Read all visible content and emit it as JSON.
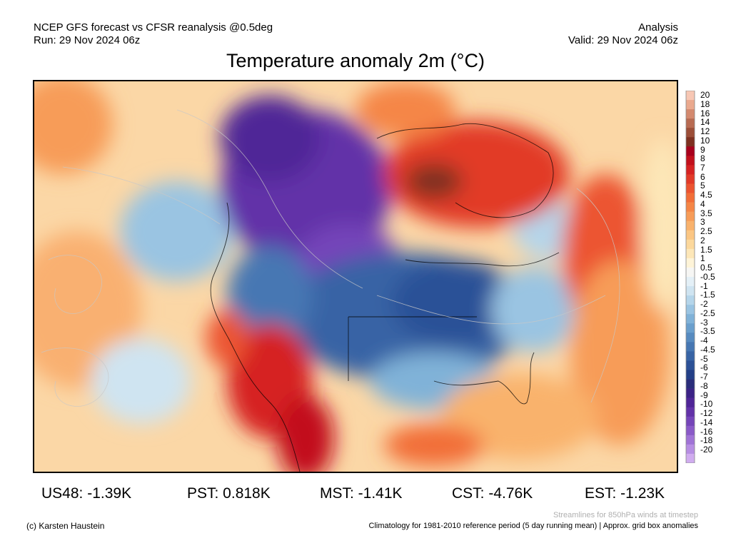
{
  "header": {
    "left_line1": "NCEP GFS forecast vs CFSR reanalysis @0.5deg",
    "left_line2": "Run: 29 Nov 2024 06z",
    "right_line1": "Analysis",
    "right_line2": "Valid: 29 Nov 2024 06z"
  },
  "title": "Temperature anomaly 2m (°C)",
  "colorbar": {
    "labels": [
      "20",
      "18",
      "16",
      "14",
      "12",
      "10",
      "9",
      "8",
      "7",
      "6",
      "5",
      "4.5",
      "4",
      "3.5",
      "3",
      "2.5",
      "2",
      "1.5",
      "1",
      "0.5",
      "-0.5",
      "-1",
      "-1.5",
      "-2",
      "-2.5",
      "-3",
      "-3.5",
      "-4",
      "-4.5",
      "-5",
      "-6",
      "-7",
      "-8",
      "-9",
      "-10",
      "-12",
      "-14",
      "-16",
      "-18",
      "-20"
    ],
    "colors": [
      "#f7c7b4",
      "#eaa98e",
      "#d48a6f",
      "#b86b52",
      "#9c4e38",
      "#7e3020",
      "#a8001c",
      "#c2101c",
      "#d62222",
      "#e23a28",
      "#ec5430",
      "#f26e38",
      "#f58646",
      "#f79c58",
      "#f9b26c",
      "#fbc683",
      "#fcd89c",
      "#fde7b8",
      "#fef4d8",
      "#f6f6f4",
      "#e4f0f7",
      "#cfe4f1",
      "#b5d5ea",
      "#9ac4e2",
      "#80b2d8",
      "#6a9fcd",
      "#578bc0",
      "#4677b3",
      "#3864a5",
      "#2c5197",
      "#233f87",
      "#2a2d7a",
      "#3b2286",
      "#4f2597",
      "#6232a8",
      "#7545b9",
      "#8a5ac8",
      "#a073d6",
      "#b78ee3",
      "#d0acef"
    ]
  },
  "stats": [
    {
      "label": "US48: -1.39K"
    },
    {
      "label": "PST: 0.818K"
    },
    {
      "label": "MST: -1.41K"
    },
    {
      "label": "CST: -4.76K"
    },
    {
      "label": "EST: -1.23K"
    }
  ],
  "footer": {
    "credit": "(c) Karsten Haustein",
    "streamlines_note": "Streamlines for 850hPa winds at timestep",
    "climatology_note": "Climatology for 1981-2010 reference period (5 day running mean) | Approx. grid box anomalies"
  }
}
